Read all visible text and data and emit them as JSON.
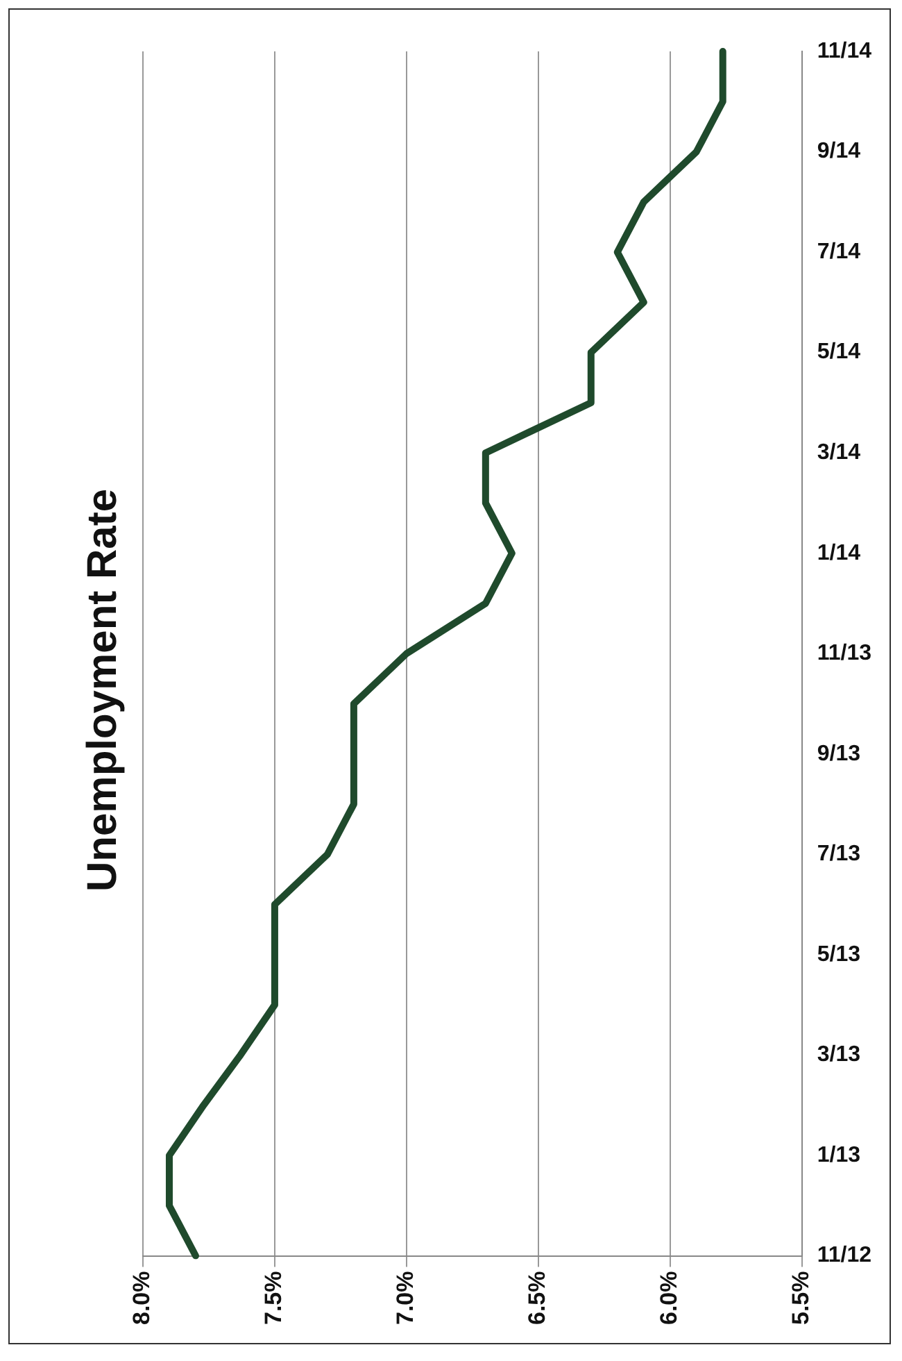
{
  "chart_data": {
    "type": "line",
    "title": "Unemployment Rate",
    "orientation": "horizontal",
    "categories": [
      "11/14",
      null,
      "9/14",
      null,
      "7/14",
      null,
      "5/14",
      null,
      "3/14",
      null,
      "1/14",
      null,
      "11/13",
      null,
      "9/13",
      null,
      "7/13",
      null,
      "5/13",
      null,
      "3/13",
      null,
      "1/13",
      null,
      "11/12"
    ],
    "series": [
      {
        "color": "#1f4a2c",
        "values": [
          5.8,
          5.8,
          5.9,
          6.1,
          6.2,
          6.1,
          6.3,
          6.3,
          6.7,
          6.7,
          6.6,
          6.7,
          7.0,
          7.2,
          7.2,
          7.2,
          7.3,
          7.5,
          7.5,
          7.5,
          7.63,
          7.77,
          7.9,
          7.9,
          7.8
        ]
      }
    ],
    "xlim": [
      8.0,
      5.5
    ],
    "xticks": [
      {
        "value": 8.0,
        "label": "8.0%"
      },
      {
        "value": 7.5,
        "label": "7.5%"
      },
      {
        "value": 7.0,
        "label": "7.0%"
      },
      {
        "value": 6.5,
        "label": "6.5%"
      },
      {
        "value": 6.0,
        "label": "6.0%"
      },
      {
        "value": 5.5,
        "label": "5.5%"
      }
    ],
    "grid": "x",
    "legend": false,
    "marker": "none",
    "line_style": "solid"
  }
}
